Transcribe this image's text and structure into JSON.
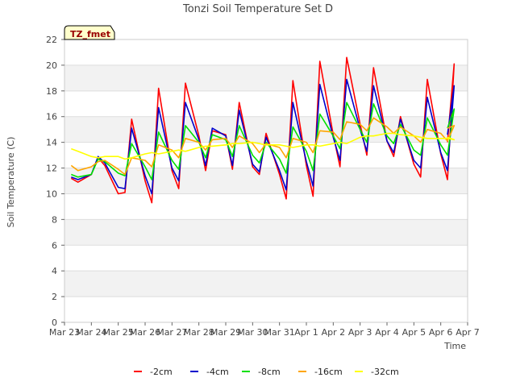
{
  "chart_data": {
    "type": "line",
    "title": "Tonzi Soil Temperature Set D",
    "xlabel": "Time",
    "ylabel": "Soil Temperature (C)",
    "ylim": [
      0,
      22
    ],
    "y_ticks": [
      0,
      2,
      4,
      6,
      8,
      10,
      12,
      14,
      16,
      18,
      20,
      22
    ],
    "x_range": [
      "Mar 23",
      "Apr 7"
    ],
    "x_ticks": [
      "Mar 23",
      "Mar 24",
      "Mar 25",
      "Mar 26",
      "Mar 27",
      "Mar 28",
      "Mar 29",
      "Mar 30",
      "Mar 31",
      "Apr 1",
      "Apr 2",
      "Apr 3",
      "Apr 4",
      "Apr 5",
      "Apr 6",
      "Apr 7"
    ],
    "grid": "horizontal bands",
    "legend_position": "bottom-center",
    "annotation": "TZ_fmet",
    "colors": {
      "-2cm": "#ff0000",
      "-4cm": "#0000cc",
      "-8cm": "#00e000",
      "-16cm": "#ffa500",
      "-32cm": "#ffff00"
    },
    "series": [
      {
        "name": "-2cm",
        "x": [
          "Mar 23 06:00",
          "Mar 23 12:00",
          "Mar 24 00:00",
          "Mar 24 06:00",
          "Mar 24 12:00",
          "Mar 25 00:00",
          "Mar 25 06:00",
          "Mar 25 12:00",
          "Mar 26 00:00",
          "Mar 26 06:00",
          "Mar 26 12:00",
          "Mar 27 00:00",
          "Mar 27 06:00",
          "Mar 27 12:00",
          "Mar 28 00:00",
          "Mar 28 06:00",
          "Mar 28 12:00",
          "Mar 29 00:00",
          "Mar 29 06:00",
          "Mar 29 12:00",
          "Mar 30 00:00",
          "Mar 30 06:00",
          "Mar 30 12:00",
          "Mar 31 00:00",
          "Mar 31 06:00",
          "Mar 31 12:00",
          "Apr 1 00:00",
          "Apr 1 06:00",
          "Apr 1 12:00",
          "Apr 2 00:00",
          "Apr 2 06:00",
          "Apr 2 12:00",
          "Apr 3 00:00",
          "Apr 3 06:00",
          "Apr 3 12:00",
          "Apr 4 00:00",
          "Apr 4 06:00",
          "Apr 4 12:00",
          "Apr 5 00:00",
          "Apr 5 06:00",
          "Apr 5 12:00",
          "Apr 6 00:00",
          "Apr 6 06:00",
          "Apr 6 12:00",
          "Apr 6 06:00"
        ],
        "values": [
          11.2,
          10.9,
          11.5,
          12.8,
          12.2,
          10.0,
          10.1,
          15.8,
          11.0,
          9.3,
          18.2,
          11.8,
          10.4,
          18.6,
          14.5,
          11.8,
          14.9,
          14.6,
          11.9,
          17.1,
          12.1,
          11.5,
          14.7,
          11.5,
          9.6,
          18.8,
          12.2,
          9.8,
          20.3,
          14.6,
          12.1,
          20.6,
          15.4,
          13.0,
          19.8,
          14.1,
          12.9,
          16.0,
          12.3,
          11.3,
          18.9,
          13.1,
          11.1,
          20.1,
          14.0
        ]
      },
      {
        "name": "-4cm",
        "x": [
          "Mar 23 06:00",
          "Mar 23 12:00",
          "Mar 24 00:00",
          "Mar 24 06:00",
          "Mar 24 12:00",
          "Mar 25 00:00",
          "Mar 25 06:00",
          "Mar 25 12:00",
          "Mar 26 00:00",
          "Mar 26 06:00",
          "Mar 26 12:00",
          "Mar 27 00:00",
          "Mar 27 06:00",
          "Mar 27 12:00",
          "Mar 28 00:00",
          "Mar 28 06:00",
          "Mar 28 12:00",
          "Mar 29 00:00",
          "Mar 29 06:00",
          "Mar 29 12:00",
          "Mar 30 00:00",
          "Mar 30 06:00",
          "Mar 30 12:00",
          "Mar 31 00:00",
          "Mar 31 06:00",
          "Mar 31 12:00",
          "Apr 1 00:00",
          "Apr 1 06:00",
          "Apr 1 12:00",
          "Apr 2 00:00",
          "Apr 2 06:00",
          "Apr 2 12:00",
          "Apr 3 00:00",
          "Apr 3 06:00",
          "Apr 3 12:00",
          "Apr 4 00:00",
          "Apr 4 06:00",
          "Apr 4 12:00",
          "Apr 5 00:00",
          "Apr 5 06:00",
          "Apr 5 12:00",
          "Apr 6 00:00",
          "Apr 6 06:00",
          "Apr 6 12:00",
          "Apr 6 06:00"
        ],
        "values": [
          11.3,
          11.1,
          11.5,
          12.9,
          12.4,
          10.5,
          10.4,
          15.1,
          11.4,
          10.0,
          16.7,
          12.0,
          11.0,
          17.1,
          14.2,
          12.2,
          15.1,
          14.5,
          12.2,
          16.5,
          12.3,
          11.7,
          14.4,
          11.8,
          10.3,
          17.1,
          12.5,
          10.6,
          18.5,
          14.4,
          12.6,
          18.9,
          15.0,
          13.3,
          18.4,
          14.1,
          13.2,
          15.8,
          12.6,
          12.0,
          17.5,
          13.2,
          11.8,
          18.4,
          14.6
        ]
      },
      {
        "name": "-8cm",
        "x": [
          "Mar 23 06:00",
          "Mar 23 12:00",
          "Mar 24 00:00",
          "Mar 24 06:00",
          "Mar 24 12:00",
          "Mar 25 00:00",
          "Mar 25 06:00",
          "Mar 25 12:00",
          "Mar 26 00:00",
          "Mar 26 06:00",
          "Mar 26 12:00",
          "Mar 27 00:00",
          "Mar 27 06:00",
          "Mar 27 12:00",
          "Mar 28 00:00",
          "Mar 28 06:00",
          "Mar 28 12:00",
          "Mar 29 00:00",
          "Mar 29 06:00",
          "Mar 29 12:00",
          "Mar 30 00:00",
          "Mar 30 06:00",
          "Mar 30 12:00",
          "Mar 31 00:00",
          "Mar 31 06:00",
          "Mar 31 12:00",
          "Apr 1 00:00",
          "Apr 1 06:00",
          "Apr 1 12:00",
          "Apr 2 00:00",
          "Apr 2 06:00",
          "Apr 2 12:00",
          "Apr 3 00:00",
          "Apr 3 06:00",
          "Apr 3 12:00",
          "Apr 4 00:00",
          "Apr 4 06:00",
          "Apr 4 12:00",
          "Apr 5 00:00",
          "Apr 5 06:00",
          "Apr 5 12:00",
          "Apr 6 00:00",
          "Apr 6 06:00",
          "Apr 6 12:00",
          "Apr 6 06:00"
        ],
        "values": [
          11.5,
          11.3,
          11.5,
          12.7,
          12.5,
          11.6,
          11.4,
          13.9,
          12.1,
          11.1,
          14.8,
          12.6,
          11.9,
          15.3,
          14.0,
          12.8,
          14.6,
          14.2,
          12.9,
          15.3,
          13.0,
          12.4,
          14.0,
          12.7,
          11.6,
          15.2,
          13.3,
          11.8,
          16.2,
          14.5,
          13.5,
          17.1,
          15.0,
          14.0,
          17.0,
          14.5,
          13.9,
          15.4,
          13.4,
          13.0,
          15.9,
          13.8,
          13.0,
          16.6,
          15.1
        ]
      },
      {
        "name": "-16cm",
        "x": [
          "Mar 23 06:00",
          "Mar 23 12:00",
          "Mar 24 00:00",
          "Mar 24 06:00",
          "Mar 24 12:00",
          "Mar 25 00:00",
          "Mar 25 06:00",
          "Mar 25 12:00",
          "Mar 26 00:00",
          "Mar 26 06:00",
          "Mar 26 12:00",
          "Mar 27 00:00",
          "Mar 27 06:00",
          "Mar 27 12:00",
          "Mar 28 00:00",
          "Mar 28 06:00",
          "Mar 28 12:00",
          "Mar 29 00:00",
          "Mar 29 06:00",
          "Mar 29 12:00",
          "Mar 30 00:00",
          "Mar 30 06:00",
          "Mar 30 12:00",
          "Mar 31 00:00",
          "Mar 31 06:00",
          "Mar 31 12:00",
          "Apr 1 00:00",
          "Apr 1 06:00",
          "Apr 1 12:00",
          "Apr 2 00:00",
          "Apr 2 06:00",
          "Apr 2 12:00",
          "Apr 3 00:00",
          "Apr 3 06:00",
          "Apr 3 12:00",
          "Apr 4 00:00",
          "Apr 4 06:00",
          "Apr 4 12:00",
          "Apr 5 00:00",
          "Apr 5 06:00",
          "Apr 5 12:00",
          "Apr 6 00:00",
          "Apr 6 06:00",
          "Apr 6 12:00",
          "Apr 6 06:00"
        ],
        "values": [
          12.2,
          11.8,
          12.1,
          12.5,
          12.6,
          11.9,
          11.5,
          12.8,
          12.6,
          12.1,
          13.8,
          13.4,
          12.8,
          14.3,
          14.0,
          13.4,
          14.2,
          14.3,
          13.6,
          14.5,
          13.9,
          13.2,
          13.9,
          13.6,
          12.8,
          14.3,
          14.0,
          13.2,
          14.9,
          14.8,
          14.2,
          15.6,
          15.4,
          14.9,
          15.9,
          15.2,
          14.7,
          15.2,
          14.5,
          14.0,
          15.0,
          14.7,
          14.1,
          15.3,
          15.1
        ]
      },
      {
        "name": "-32cm",
        "x": [
          "Mar 23 06:00",
          "Mar 23 12:00",
          "Mar 24 00:00",
          "Mar 24 06:00",
          "Mar 24 12:00",
          "Mar 25 00:00",
          "Mar 25 06:00",
          "Mar 25 12:00",
          "Mar 26 00:00",
          "Mar 26 06:00",
          "Mar 26 12:00",
          "Mar 27 00:00",
          "Mar 27 06:00",
          "Mar 27 12:00",
          "Mar 28 00:00",
          "Mar 28 06:00",
          "Mar 28 12:00",
          "Mar 29 00:00",
          "Mar 29 06:00",
          "Mar 29 12:00",
          "Mar 30 00:00",
          "Mar 30 06:00",
          "Mar 30 12:00",
          "Mar 31 00:00",
          "Mar 31 06:00",
          "Mar 31 12:00",
          "Apr 1 00:00",
          "Apr 1 06:00",
          "Apr 1 12:00",
          "Apr 2 00:00",
          "Apr 2 06:00",
          "Apr 2 12:00",
          "Apr 3 00:00",
          "Apr 3 06:00",
          "Apr 3 12:00",
          "Apr 4 00:00",
          "Apr 4 06:00",
          "Apr 4 12:00",
          "Apr 5 00:00",
          "Apr 5 06:00",
          "Apr 5 12:00",
          "Apr 6 00:00",
          "Apr 6 06:00",
          "Apr 6 12:00",
          "Apr 6 06:00"
        ],
        "values": [
          13.5,
          13.3,
          12.9,
          12.8,
          12.9,
          12.9,
          12.7,
          12.8,
          13.1,
          13.2,
          13.1,
          13.3,
          13.4,
          13.3,
          13.6,
          13.7,
          13.7,
          13.8,
          13.9,
          13.9,
          14.0,
          13.9,
          13.8,
          13.8,
          13.7,
          13.6,
          13.8,
          13.8,
          13.7,
          13.9,
          14.0,
          13.9,
          14.4,
          14.5,
          14.5,
          14.7,
          14.7,
          14.6,
          14.5,
          14.4,
          14.3,
          14.3,
          14.3,
          14.2,
          14.4
        ]
      }
    ]
  }
}
